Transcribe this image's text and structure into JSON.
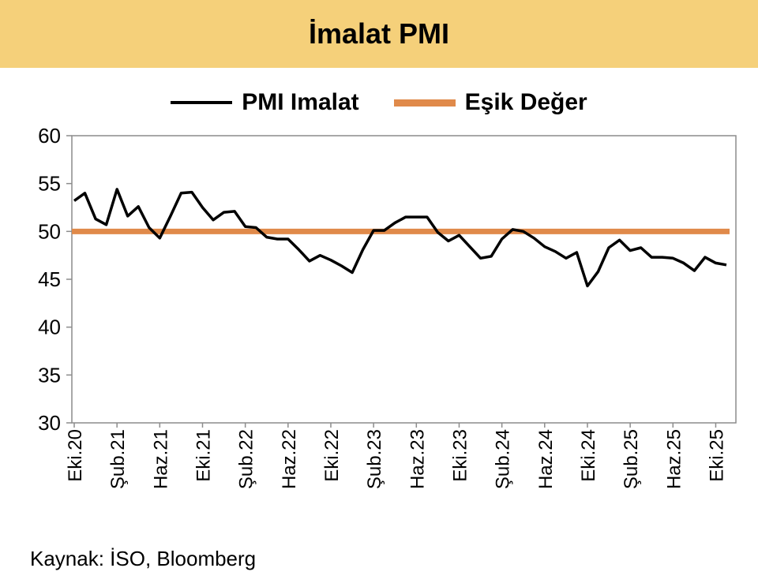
{
  "title": "İmalat PMI",
  "footer": {
    "source": "Kaynak: İSO, Bloomberg"
  },
  "colors": {
    "title_band": "#f5d07a",
    "pmi_line": "#000000",
    "threshold_line": "#e08a4a",
    "axes": "#8c8c8c"
  },
  "chart_data": {
    "type": "line",
    "title": "İmalat PMI",
    "legend_position": "top-center",
    "ylim": [
      30,
      60
    ],
    "yticks": [
      30,
      35,
      40,
      45,
      50,
      55,
      60
    ],
    "xlabel": "",
    "ylabel": "",
    "x_tick_labels": [
      "Eki.20",
      "Şub.21",
      "Haz.21",
      "Eki.21",
      "Şub.22",
      "Haz.22",
      "Eki.22",
      "Şub.23",
      "Haz.23",
      "Eki.23",
      "Şub.24",
      "Haz.24",
      "Eki.24",
      "Şub.25",
      "Haz.25",
      "Eki.25"
    ],
    "grid": false,
    "series": [
      {
        "name": "PMI Imalat",
        "color": "#000000",
        "values": [
          53.2,
          54.0,
          51.3,
          50.7,
          54.4,
          51.6,
          52.6,
          50.4,
          49.3,
          51.6,
          54.0,
          54.1,
          52.5,
          51.2,
          52.0,
          52.1,
          50.5,
          50.4,
          49.4,
          49.2,
          49.2,
          48.1,
          46.9,
          47.5,
          47.0,
          46.4,
          45.7,
          48.1,
          50.1,
          50.1,
          50.9,
          51.5,
          51.5,
          51.5,
          49.9,
          49.0,
          49.6,
          48.4,
          47.2,
          47.4,
          49.2,
          50.2,
          50.0,
          49.3,
          48.4,
          47.9,
          47.2,
          47.8,
          44.3,
          45.8,
          48.3,
          49.1,
          48.0,
          48.3,
          47.3,
          47.3,
          47.2,
          46.7,
          45.9,
          47.3,
          46.7,
          46.5
        ]
      },
      {
        "name": "Eşik Değer",
        "color": "#e08a4a",
        "constant": 50
      }
    ]
  }
}
